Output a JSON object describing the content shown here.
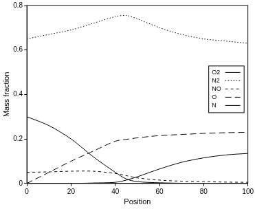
{
  "chart_data": {
    "type": "line",
    "x_label": "Position",
    "y_label": "Mass fraction",
    "x": [
      0,
      10,
      20,
      30,
      40,
      45,
      50,
      60,
      70,
      80,
      90,
      100
    ],
    "series": [
      {
        "name": "O2",
        "color": "#000000",
        "line_style": "solid",
        "values": [
          0.3,
          0.26,
          0.2,
          0.12,
          0.05,
          0.02,
          0.008,
          0.003,
          0.001,
          0.0,
          0.0,
          0.0
        ]
      },
      {
        "name": "N2",
        "color": "#000000",
        "line_style": "dotted",
        "values": [
          0.65,
          0.67,
          0.69,
          0.72,
          0.75,
          0.755,
          0.74,
          0.7,
          0.67,
          0.65,
          0.64,
          0.63
        ]
      },
      {
        "name": "NO",
        "color": "#000000",
        "line_style": "dashed",
        "values": [
          0.05,
          0.052,
          0.055,
          0.055,
          0.045,
          0.035,
          0.025,
          0.015,
          0.01,
          0.008,
          0.006,
          0.005
        ]
      },
      {
        "name": "O",
        "color": "#000000",
        "line_style": "longdash",
        "values": [
          0.0,
          0.05,
          0.1,
          0.145,
          0.19,
          0.198,
          0.205,
          0.215,
          0.22,
          0.225,
          0.228,
          0.23
        ]
      },
      {
        "name": "N",
        "color": "#000000",
        "line_style": "solid",
        "values": [
          0.0,
          0.0,
          0.0,
          0.002,
          0.005,
          0.015,
          0.03,
          0.065,
          0.095,
          0.115,
          0.128,
          0.135
        ]
      }
    ],
    "xlim": [
      0,
      100
    ],
    "xticks": [
      0,
      20,
      40,
      60,
      80,
      100
    ],
    "ylim": [
      0,
      0.8
    ],
    "yticks": [
      0,
      0.2,
      0.4,
      0.6,
      0.8
    ],
    "grid": false,
    "legend": "right",
    "marker": "none"
  }
}
